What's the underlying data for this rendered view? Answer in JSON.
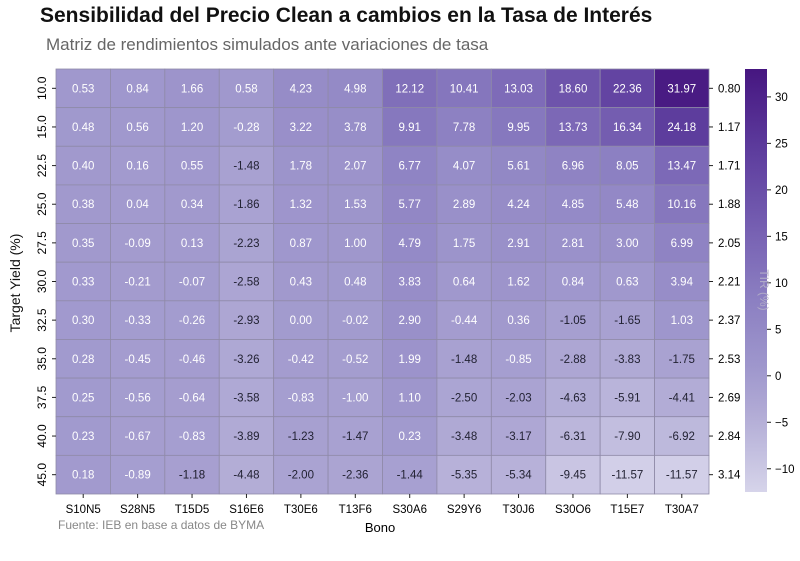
{
  "chart_data": {
    "type": "heatmap",
    "title": "Sensibilidad del Precio Clean a cambios en la Tasa de Interés",
    "subtitle": "Matriz de rendimientos simulados ante variaciones de tasa",
    "xlabel": "Bono",
    "ylabel": "Target Yield (%)",
    "source": "Fuente: IEB en base a datos de BYMA",
    "colorbar_label": "TIR (%)",
    "colorbar_ticks": [
      "30",
      "25",
      "20",
      "15",
      "10",
      "5",
      "0",
      "−5",
      "−10"
    ],
    "colorbar_tick_values": [
      30,
      25,
      20,
      15,
      10,
      5,
      0,
      -5,
      -10
    ],
    "colorbar_range": [
      -12.5,
      33
    ],
    "columns": [
      "S10N5",
      "S28N5",
      "T15D5",
      "S16E6",
      "T30E6",
      "T13F6",
      "S30A6",
      "S29Y6",
      "T30J6",
      "S30O6",
      "T15E7",
      "T30A7"
    ],
    "rows": [
      "10.0",
      "15.0",
      "22.5",
      "25.0",
      "27.5",
      "30.0",
      "32.5",
      "35.0",
      "37.5",
      "40.0",
      "45.0"
    ],
    "right_labels": [
      "0.80",
      "1.17",
      "1.71",
      "1.88",
      "2.05",
      "2.21",
      "2.37",
      "2.53",
      "2.69",
      "2.84",
      "3.14"
    ],
    "values": [
      [
        "0.53",
        "0.84",
        "1.66",
        "0.58",
        "4.23",
        "4.98",
        "12.12",
        "10.41",
        "13.03",
        "18.60",
        "22.36",
        "31.97"
      ],
      [
        "0.48",
        "0.56",
        "1.20",
        "-0.28",
        "3.22",
        "3.78",
        "9.91",
        "7.78",
        "9.95",
        "13.73",
        "16.34",
        "24.18"
      ],
      [
        "0.40",
        "0.16",
        "0.55",
        "-1.48",
        "1.78",
        "2.07",
        "6.77",
        "4.07",
        "5.61",
        "6.96",
        "8.05",
        "13.47"
      ],
      [
        "0.38",
        "0.04",
        "0.34",
        "-1.86",
        "1.32",
        "1.53",
        "5.77",
        "2.89",
        "4.24",
        "4.85",
        "5.48",
        "10.16"
      ],
      [
        "0.35",
        "-0.09",
        "0.13",
        "-2.23",
        "0.87",
        "1.00",
        "4.79",
        "1.75",
        "2.91",
        "2.81",
        "3.00",
        "6.99"
      ],
      [
        "0.33",
        "-0.21",
        "-0.07",
        "-2.58",
        "0.43",
        "0.48",
        "3.83",
        "0.64",
        "1.62",
        "0.84",
        "0.63",
        "3.94"
      ],
      [
        "0.30",
        "-0.33",
        "-0.26",
        "-2.93",
        "0.00",
        "-0.02",
        "2.90",
        "-0.44",
        "0.36",
        "-1.05",
        "-1.65",
        "1.03"
      ],
      [
        "0.28",
        "-0.45",
        "-0.46",
        "-3.26",
        "-0.42",
        "-0.52",
        "1.99",
        "-1.48",
        "-0.85",
        "-2.88",
        "-3.83",
        "-1.75"
      ],
      [
        "0.25",
        "-0.56",
        "-0.64",
        "-3.58",
        "-0.83",
        "-1.00",
        "1.10",
        "-2.50",
        "-2.03",
        "-4.63",
        "-5.91",
        "-4.41"
      ],
      [
        "0.23",
        "-0.67",
        "-0.83",
        "-3.89",
        "-1.23",
        "-1.47",
        "0.23",
        "-3.48",
        "-3.17",
        "-6.31",
        "-7.90",
        "-6.92"
      ],
      [
        "0.18",
        "-0.89",
        "-1.18",
        "-4.48",
        "-2.00",
        "-2.36",
        "-1.44",
        "-5.35",
        "-5.34",
        "-9.45",
        "-11.57",
        "-11.57"
      ]
    ]
  }
}
